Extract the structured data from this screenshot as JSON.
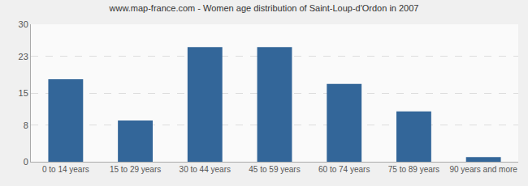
{
  "chart_data": {
    "type": "bar",
    "title": "www.map-france.com - Women age distribution of Saint-Loup-d'Ordon in 2007",
    "categories": [
      "0 to 14 years",
      "15 to 29 years",
      "30 to 44 years",
      "45 to 59 years",
      "60 to 74 years",
      "75 to 89 years",
      "90 years and more"
    ],
    "values": [
      18,
      9,
      25,
      25,
      17,
      11,
      1
    ],
    "color": "#336699",
    "ylim": [
      0,
      30
    ],
    "yticks": [
      0,
      8,
      15,
      23,
      30
    ],
    "grid": true
  }
}
